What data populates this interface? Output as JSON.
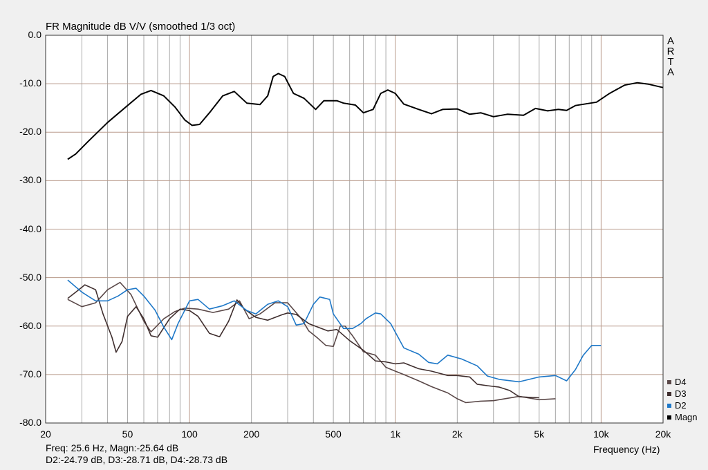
{
  "chart_data": {
    "type": "line",
    "title": "FR Magnitude dB V/V (smoothed 1/3 oct)",
    "xlabel": "Frequency (Hz)",
    "ylabel": "",
    "x_scale": "log",
    "xlim": [
      20,
      20000
    ],
    "ylim": [
      -80,
      0
    ],
    "grid": true,
    "legend_position": "bottom-right",
    "x_tick_labels": [
      "20",
      "50",
      "100",
      "200",
      "500",
      "1k",
      "2k",
      "5k",
      "10k",
      "20k"
    ],
    "y_tick_labels": [
      "0.0",
      "-10.0",
      "-20.0",
      "-30.0",
      "-40.0",
      "-50.0",
      "-60.0",
      "-70.0",
      "-80.0"
    ],
    "series": [
      {
        "name": "Magn",
        "color": "#000000",
        "points": [
          [
            25.6,
            -25.6
          ],
          [
            28,
            -24.5
          ],
          [
            32,
            -22
          ],
          [
            40,
            -18
          ],
          [
            50,
            -14.5
          ],
          [
            58,
            -12.2
          ],
          [
            65,
            -11.4
          ],
          [
            75,
            -12.5
          ],
          [
            85,
            -14.8
          ],
          [
            95,
            -17.5
          ],
          [
            103,
            -18.6
          ],
          [
            112,
            -18.4
          ],
          [
            125,
            -16
          ],
          [
            145,
            -12.5
          ],
          [
            165,
            -11.6
          ],
          [
            190,
            -14
          ],
          [
            220,
            -14.3
          ],
          [
            240,
            -12.5
          ],
          [
            255,
            -8.5
          ],
          [
            270,
            -7.9
          ],
          [
            290,
            -8.5
          ],
          [
            320,
            -12
          ],
          [
            360,
            -13
          ],
          [
            410,
            -15.3
          ],
          [
            450,
            -13.5
          ],
          [
            520,
            -13.5
          ],
          [
            560,
            -14
          ],
          [
            640,
            -14.4
          ],
          [
            700,
            -16
          ],
          [
            780,
            -15.3
          ],
          [
            850,
            -12
          ],
          [
            920,
            -11.3
          ],
          [
            1000,
            -12
          ],
          [
            1100,
            -14.2
          ],
          [
            1300,
            -15.3
          ],
          [
            1500,
            -16.2
          ],
          [
            1700,
            -15.3
          ],
          [
            2000,
            -15.2
          ],
          [
            2300,
            -16.3
          ],
          [
            2600,
            -16
          ],
          [
            3000,
            -16.8
          ],
          [
            3500,
            -16.3
          ],
          [
            4200,
            -16.5
          ],
          [
            4800,
            -15.1
          ],
          [
            5500,
            -15.6
          ],
          [
            6200,
            -15.3
          ],
          [
            6800,
            -15.5
          ],
          [
            7500,
            -14.5
          ],
          [
            9500,
            -13.8
          ],
          [
            11000,
            -12
          ],
          [
            13000,
            -10.3
          ],
          [
            15000,
            -9.8
          ],
          [
            17000,
            -10.1
          ],
          [
            20000,
            -10.8
          ]
        ]
      },
      {
        "name": "D2",
        "color": "#1e78c8",
        "points": [
          [
            25.6,
            -50.5
          ],
          [
            30,
            -53
          ],
          [
            35,
            -54.8
          ],
          [
            40,
            -54.8
          ],
          [
            45,
            -53.8
          ],
          [
            50,
            -52.5
          ],
          [
            55,
            -52.2
          ],
          [
            60,
            -53.8
          ],
          [
            68,
            -56.7
          ],
          [
            75,
            -60.2
          ],
          [
            82,
            -62.8
          ],
          [
            88,
            -59.5
          ],
          [
            100,
            -54.8
          ],
          [
            110,
            -54.5
          ],
          [
            125,
            -56.5
          ],
          [
            145,
            -55.8
          ],
          [
            165,
            -54.8
          ],
          [
            190,
            -56.8
          ],
          [
            210,
            -57.5
          ],
          [
            240,
            -55.5
          ],
          [
            270,
            -54.8
          ],
          [
            300,
            -56
          ],
          [
            330,
            -59.8
          ],
          [
            360,
            -59.5
          ],
          [
            400,
            -55.5
          ],
          [
            430,
            -54
          ],
          [
            480,
            -54.5
          ],
          [
            500,
            -57.5
          ],
          [
            560,
            -60.5
          ],
          [
            620,
            -60.5
          ],
          [
            680,
            -59.5
          ],
          [
            720,
            -58.5
          ],
          [
            800,
            -57.3
          ],
          [
            850,
            -57.5
          ],
          [
            950,
            -59.5
          ],
          [
            1100,
            -64.5
          ],
          [
            1300,
            -65.8
          ],
          [
            1450,
            -67.5
          ],
          [
            1600,
            -67.8
          ],
          [
            1800,
            -66
          ],
          [
            2100,
            -66.8
          ],
          [
            2500,
            -68.2
          ],
          [
            2800,
            -70.3
          ],
          [
            3200,
            -71
          ],
          [
            4000,
            -71.5
          ],
          [
            5000,
            -70.5
          ],
          [
            6000,
            -70.2
          ],
          [
            6800,
            -71.3
          ],
          [
            7500,
            -69
          ],
          [
            8200,
            -66
          ],
          [
            9000,
            -64
          ],
          [
            10000,
            -64
          ]
        ]
      },
      {
        "name": "D3",
        "color": "#3f2e2e",
        "points": [
          [
            25.6,
            -54.3
          ],
          [
            28,
            -53
          ],
          [
            31,
            -51.5
          ],
          [
            35,
            -52.5
          ],
          [
            38,
            -57.5
          ],
          [
            42,
            -62.3
          ],
          [
            44,
            -65.4
          ],
          [
            47,
            -63.2
          ],
          [
            50,
            -58
          ],
          [
            55,
            -56
          ],
          [
            60,
            -58.5
          ],
          [
            65,
            -62
          ],
          [
            70,
            -62.3
          ],
          [
            80,
            -58.5
          ],
          [
            90,
            -56.5
          ],
          [
            100,
            -56.8
          ],
          [
            110,
            -58
          ],
          [
            125,
            -61.5
          ],
          [
            140,
            -62.2
          ],
          [
            155,
            -59
          ],
          [
            170,
            -54.6
          ],
          [
            185,
            -56.5
          ],
          [
            210,
            -58.2
          ],
          [
            240,
            -58.8
          ],
          [
            280,
            -57.7
          ],
          [
            300,
            -57.3
          ],
          [
            330,
            -57.6
          ],
          [
            380,
            -59.5
          ],
          [
            420,
            -60.2
          ],
          [
            470,
            -61
          ],
          [
            520,
            -60.7
          ],
          [
            600,
            -63
          ],
          [
            700,
            -65
          ],
          [
            800,
            -67.2
          ],
          [
            900,
            -67.4
          ],
          [
            1000,
            -67.8
          ],
          [
            1100,
            -67.6
          ],
          [
            1300,
            -68.8
          ],
          [
            1500,
            -69.3
          ],
          [
            1800,
            -70.2
          ],
          [
            2000,
            -70.2
          ],
          [
            2300,
            -70.5
          ],
          [
            2500,
            -72
          ],
          [
            2800,
            -72.3
          ],
          [
            3200,
            -72.6
          ],
          [
            3600,
            -73.3
          ],
          [
            4000,
            -74.6
          ],
          [
            5000,
            -74.8
          ]
        ]
      },
      {
        "name": "D4",
        "color": "#5a4848",
        "points": [
          [
            25.6,
            -54.5
          ],
          [
            30,
            -56
          ],
          [
            35,
            -55.2
          ],
          [
            40,
            -52.5
          ],
          [
            46,
            -51
          ],
          [
            52,
            -53.5
          ],
          [
            60,
            -59
          ],
          [
            65,
            -61.2
          ],
          [
            75,
            -58.5
          ],
          [
            85,
            -57
          ],
          [
            95,
            -56.3
          ],
          [
            110,
            -56.5
          ],
          [
            130,
            -57.2
          ],
          [
            155,
            -56.5
          ],
          [
            175,
            -54.8
          ],
          [
            195,
            -58.5
          ],
          [
            220,
            -57.5
          ],
          [
            260,
            -55.2
          ],
          [
            300,
            -55.2
          ],
          [
            350,
            -58.5
          ],
          [
            380,
            -61
          ],
          [
            420,
            -62.5
          ],
          [
            460,
            -64
          ],
          [
            500,
            -64.2
          ],
          [
            540,
            -60
          ],
          [
            570,
            -60
          ],
          [
            620,
            -62
          ],
          [
            700,
            -65.3
          ],
          [
            800,
            -66
          ],
          [
            900,
            -68.5
          ],
          [
            1000,
            -69.3
          ],
          [
            1100,
            -70
          ],
          [
            1300,
            -71.3
          ],
          [
            1500,
            -72.5
          ],
          [
            1800,
            -73.8
          ],
          [
            2000,
            -75
          ],
          [
            2200,
            -75.8
          ],
          [
            2600,
            -75.5
          ],
          [
            3000,
            -75.4
          ],
          [
            4000,
            -74.5
          ],
          [
            5000,
            -75.2
          ],
          [
            6000,
            -75
          ]
        ]
      }
    ]
  },
  "side_label": [
    "A",
    "R",
    "T",
    "A"
  ],
  "readout": {
    "line1": "Freq: 25.6 Hz, Magn:-25.64 dB",
    "line2": "D2:-24.79 dB, D3:-28.71 dB, D4:-28.73 dB"
  },
  "legend": [
    {
      "label": "D4",
      "color": "#5a4848"
    },
    {
      "label": "D3",
      "color": "#3f2e2e"
    },
    {
      "label": "D2",
      "color": "#1e78c8"
    },
    {
      "label": "Magn",
      "color": "#000000"
    }
  ]
}
